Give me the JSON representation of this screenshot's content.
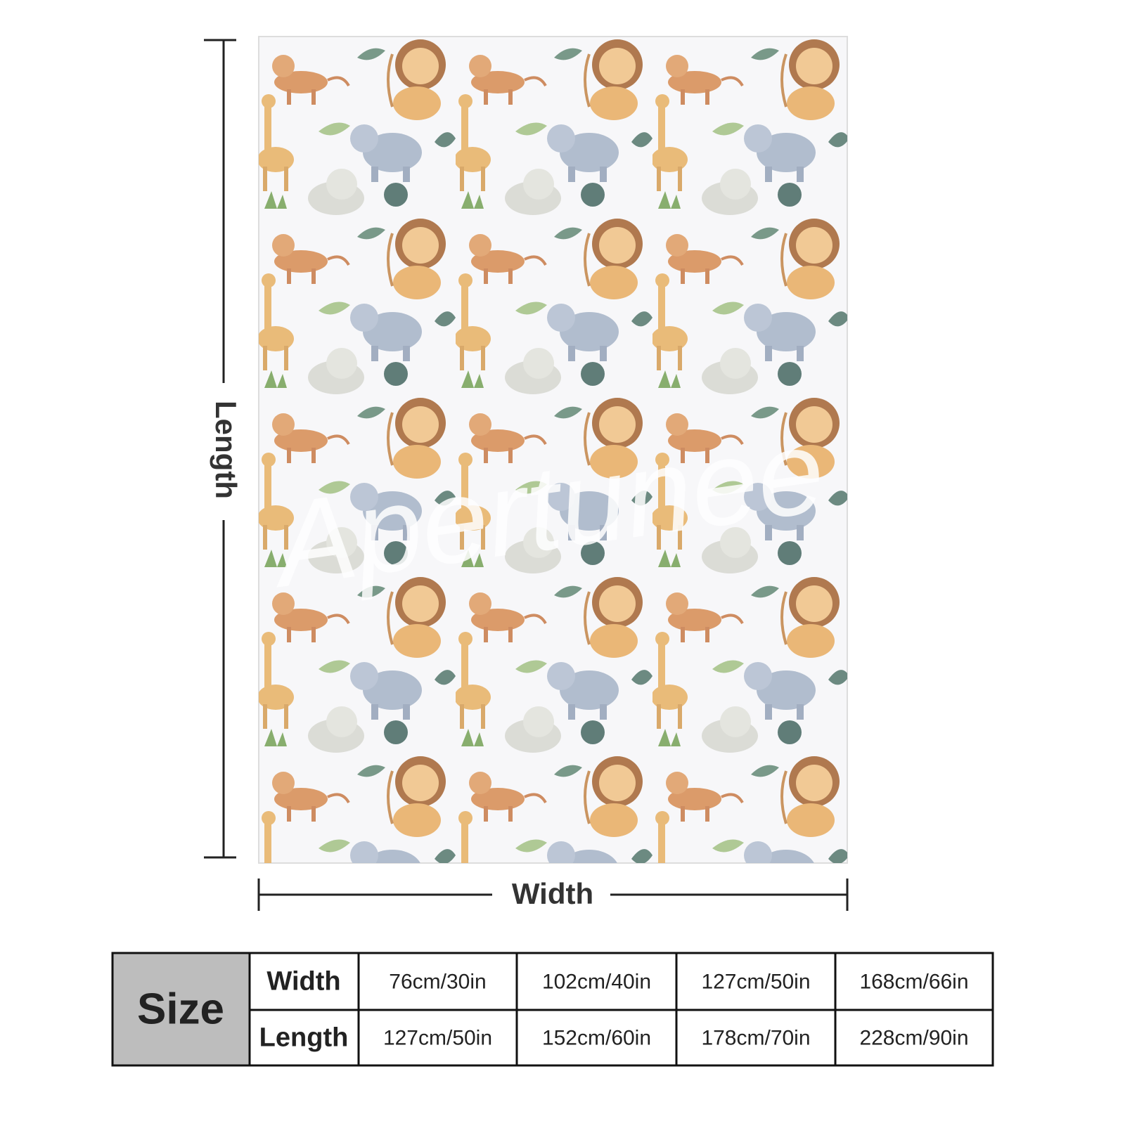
{
  "dimension_labels": {
    "length": "Length",
    "width": "Width"
  },
  "watermark": "Apertunee",
  "size_table": {
    "header": "Size",
    "rows": [
      {
        "label": "Width",
        "values": [
          "76cm/30in",
          "102cm/40in",
          "127cm/50in",
          "168cm/66in"
        ]
      },
      {
        "label": "Length",
        "values": [
          "127cm/50in",
          "152cm/60in",
          "178cm/70in",
          "228cm/90in"
        ]
      }
    ]
  }
}
